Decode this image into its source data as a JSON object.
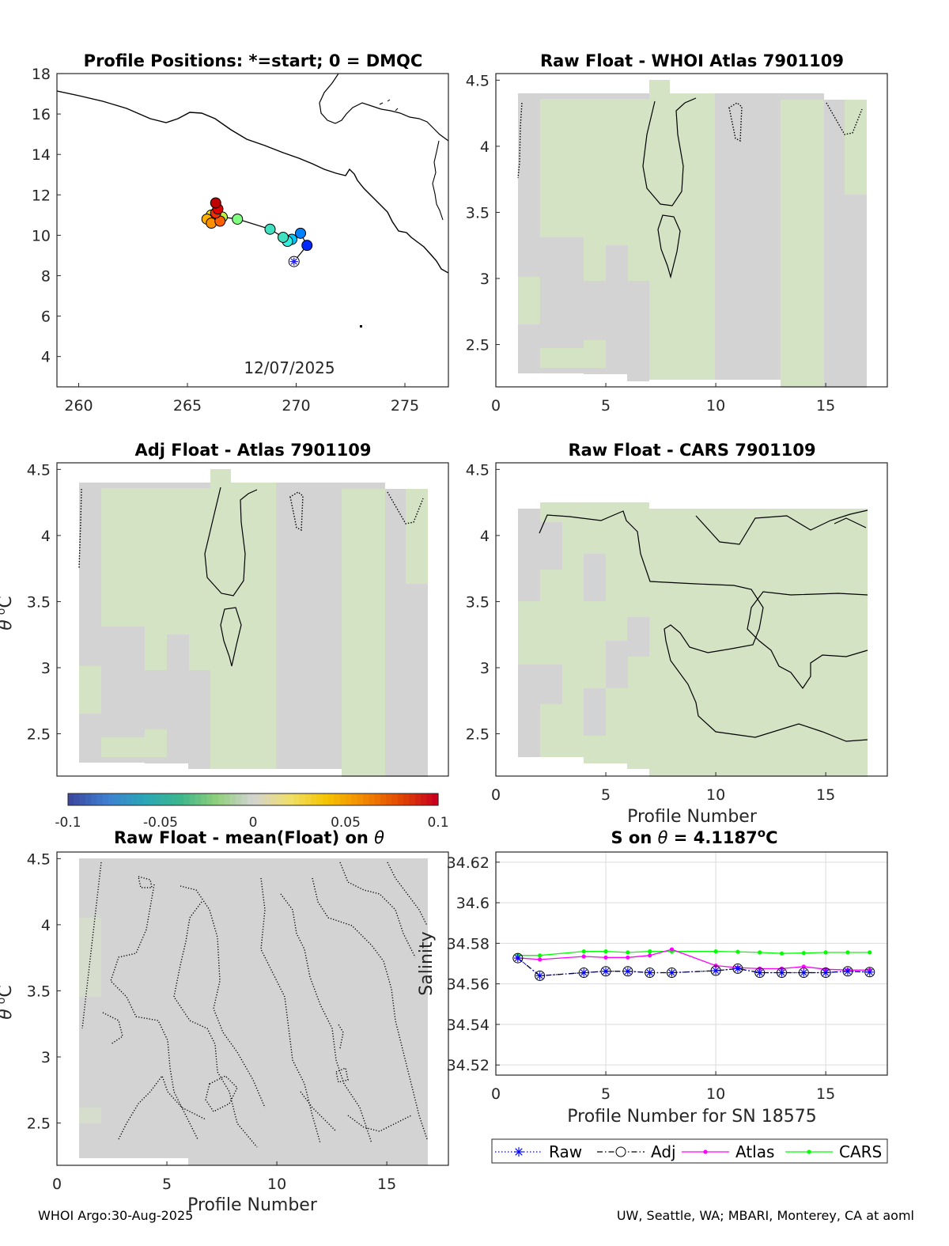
{
  "footer": {
    "left": "WHOI Argo:30-Aug-2025",
    "right": "UW, Seattle, WA; MBARI, Monterey, CA at aoml"
  },
  "colors": {
    "map_background": "#ffffff",
    "diff_zero": "#d3d3d3",
    "diff_slight_neg": "#d4e3c4",
    "grid": "#dcdcdc",
    "series_raw": "#0000ff",
    "series_adj": "#000000",
    "series_atlas": "#ff00ff",
    "series_cars": "#00ff00"
  },
  "chart_data": [
    {
      "id": "positions",
      "type": "scatter",
      "title": "Profile Positions: *=start; 0 = DMQC",
      "annotation": "12/07/2025",
      "xlim": [
        259,
        277
      ],
      "ylim": [
        2.5,
        18
      ],
      "xticks": [
        260,
        265,
        270,
        275
      ],
      "yticks": [
        4,
        6,
        8,
        10,
        12,
        14,
        16,
        18
      ],
      "points": [
        {
          "x": 269.9,
          "y": 8.7
        },
        {
          "x": 270.5,
          "y": 9.5
        },
        {
          "x": 270.2,
          "y": 10.1
        },
        {
          "x": 269.8,
          "y": 9.8
        },
        {
          "x": 269.6,
          "y": 9.7
        },
        {
          "x": 269.4,
          "y": 9.9
        },
        {
          "x": 268.8,
          "y": 10.3
        },
        {
          "x": 267.3,
          "y": 10.8
        },
        {
          "x": 266.6,
          "y": 10.9
        },
        {
          "x": 266.1,
          "y": 11.0
        },
        {
          "x": 265.9,
          "y": 10.8
        },
        {
          "x": 266.1,
          "y": 10.6
        },
        {
          "x": 266.5,
          "y": 10.7
        },
        {
          "x": 266.3,
          "y": 11.1
        },
        {
          "x": 266.4,
          "y": 11.3
        },
        {
          "x": 266.3,
          "y": 11.6
        }
      ]
    },
    {
      "id": "raw-atlas",
      "type": "heatmap",
      "title": "Raw Float - WHOI Atlas  7901109",
      "xlim": [
        0,
        17.8
      ],
      "ylim": [
        2.18,
        4.55
      ],
      "xticks": [
        0,
        5,
        10,
        15
      ],
      "yticks": [
        2.5,
        3,
        3.5,
        4,
        4.5
      ]
    },
    {
      "id": "raw-cars",
      "type": "heatmap",
      "title": "Raw Float - CARS  7901109",
      "xlabel": "Profile Number",
      "xlim": [
        0,
        17.8
      ],
      "ylim": [
        2.18,
        4.55
      ],
      "xticks": [
        0,
        5,
        10,
        15
      ],
      "yticks": [
        2.5,
        3,
        3.5,
        4,
        4.5
      ]
    },
    {
      "id": "adj-atlas",
      "type": "heatmap",
      "title": "Adj Float - Atlas  7901109",
      "ylabel_parts": [
        "θ",
        "o",
        "C"
      ],
      "xlim": [
        0,
        17.8
      ],
      "ylim": [
        2.18,
        4.55
      ],
      "yticks": [
        2.5,
        3,
        3.5,
        4,
        4.5
      ],
      "colorbar": {
        "range": [
          -0.1,
          0.1
        ],
        "tick_labels": [
          "-0.1",
          "-0.05",
          "0",
          "0.05",
          "0.1"
        ],
        "colors": [
          "#3b4aa0",
          "#3f7fd0",
          "#2aa6b8",
          "#3db68c",
          "#8fcf7a",
          "#d3d3d3",
          "#efe06b",
          "#f5c400",
          "#f28a00",
          "#e24a00",
          "#c8001e"
        ]
      }
    },
    {
      "id": "raw-mean",
      "type": "heatmap",
      "title_parts": [
        "Raw Float - mean(Float) on ",
        "θ"
      ],
      "xlabel": "Profile Number",
      "ylabel_parts": [
        "θ",
        "o",
        "C"
      ],
      "xlim": [
        0,
        17.8
      ],
      "ylim": [
        2.18,
        4.55
      ],
      "xticks": [
        0,
        5,
        10,
        15
      ],
      "yticks": [
        2.5,
        3,
        3.5,
        4,
        4.5
      ]
    },
    {
      "id": "salinity",
      "type": "line",
      "title_parts": [
        "S on ",
        "θ",
        " = 4.1187",
        "o",
        "C"
      ],
      "xlabel": "Profile Number for SN 18575",
      "ylabel": "Salinity",
      "xlim": [
        0,
        17.8
      ],
      "ylim": [
        34.515,
        34.625
      ],
      "xticks": [
        0,
        5,
        10,
        15
      ],
      "ytick_labels": [
        "34.52",
        "34.54",
        "34.56",
        "34.58",
        "34.6",
        "34.62"
      ],
      "grid": true,
      "legend_placement": "bottom-outside",
      "x": [
        1,
        2,
        4,
        5,
        6,
        7,
        8,
        10,
        11,
        12,
        13,
        14,
        15,
        16,
        17
      ],
      "series": [
        {
          "name": "Raw",
          "values": [
            34.5727,
            34.564,
            34.5655,
            34.5662,
            34.5662,
            34.5655,
            34.5655,
            34.5665,
            34.5675,
            34.5655,
            34.5655,
            34.5655,
            34.5655,
            34.5662,
            34.5658
          ]
        },
        {
          "name": "Adj",
          "values": [
            34.5727,
            34.564,
            34.5655,
            34.5662,
            34.5662,
            34.5655,
            34.5655,
            34.5665,
            34.5675,
            34.5655,
            34.5655,
            34.5655,
            34.5655,
            34.5662,
            34.5658
          ]
        },
        {
          "name": "Atlas",
          "values": [
            34.5728,
            34.572,
            34.5735,
            34.573,
            34.573,
            34.574,
            34.577,
            34.569,
            34.568,
            34.5675,
            34.5675,
            34.5685,
            34.5672,
            34.5668,
            34.5668
          ]
        },
        {
          "name": "CARS",
          "values": [
            34.574,
            34.574,
            34.576,
            34.576,
            34.5755,
            34.576,
            34.576,
            34.576,
            34.5758,
            34.5755,
            34.575,
            34.5752,
            34.5755,
            34.5755,
            34.5755
          ]
        }
      ]
    }
  ]
}
